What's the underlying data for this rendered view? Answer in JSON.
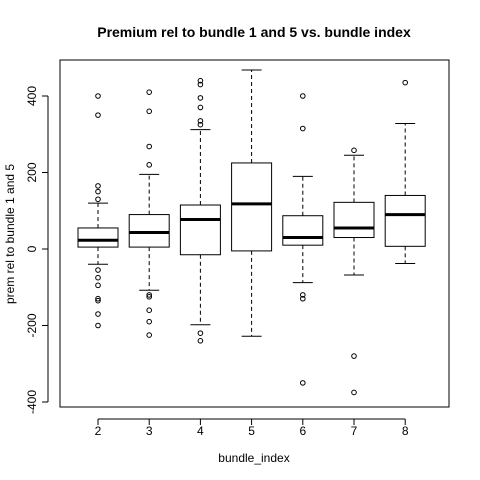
{
  "chart_data": {
    "type": "boxplot",
    "title": "Premium rel to bundle 1 and 5 vs. bundle index",
    "xlabel": "bundle_index",
    "ylabel": "prem rel to bundle 1 and 5",
    "categories": [
      "2",
      "3",
      "4",
      "5",
      "6",
      "7",
      "8"
    ],
    "ylim": [
      -410,
      495
    ],
    "y_ticks": [
      -400,
      -200,
      0,
      200,
      400
    ],
    "boxes": [
      {
        "category": "2",
        "whisker_low": -40,
        "q1": 5,
        "median": 23,
        "q3": 55,
        "whisker_high": 120,
        "outliers": [
          400,
          350,
          165,
          150,
          130,
          -55,
          -75,
          -95,
          -130,
          -135,
          -170,
          -200
        ]
      },
      {
        "category": "3",
        "whisker_low": -108,
        "q1": 5,
        "median": 43,
        "q3": 90,
        "whisker_high": 195,
        "outliers": [
          410,
          360,
          268,
          220,
          -120,
          -125,
          -160,
          -190,
          -225
        ]
      },
      {
        "category": "4",
        "whisker_low": -198,
        "q1": -15,
        "median": 77,
        "q3": 115,
        "whisker_high": 312,
        "outliers": [
          440,
          430,
          395,
          370,
          335,
          325,
          -220,
          -240
        ]
      },
      {
        "category": "5",
        "whisker_low": -228,
        "q1": -5,
        "median": 118,
        "q3": 225,
        "whisker_high": 468,
        "outliers": []
      },
      {
        "category": "6",
        "whisker_low": -88,
        "q1": 10,
        "median": 30,
        "q3": 87,
        "whisker_high": 190,
        "outliers": [
          400,
          315,
          -120,
          -130,
          -350
        ]
      },
      {
        "category": "7",
        "whisker_low": -68,
        "q1": 30,
        "median": 55,
        "q3": 122,
        "whisker_high": 245,
        "outliers": [
          258,
          -280,
          -375
        ]
      },
      {
        "category": "8",
        "whisker_low": -38,
        "q1": 7,
        "median": 90,
        "q3": 140,
        "whisker_high": 328,
        "outliers": [
          435
        ]
      }
    ]
  }
}
